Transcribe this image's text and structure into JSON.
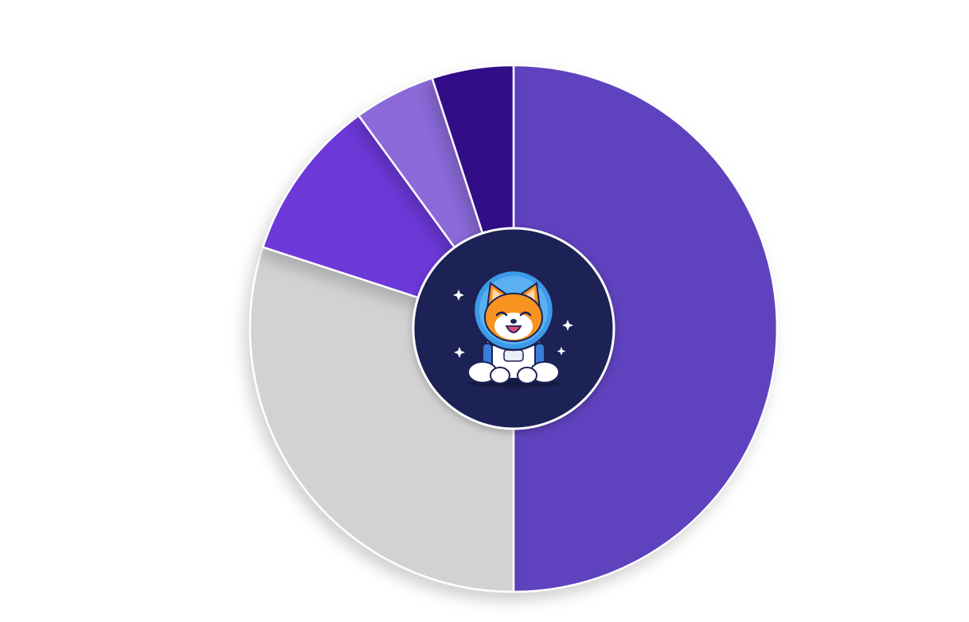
{
  "chart_data": {
    "type": "pie",
    "values": [
      50,
      30,
      10,
      5,
      5
    ],
    "colors": [
      "#5e42be",
      "#d2d2d2",
      "#6c38d8",
      "#8b69d9",
      "#300e88"
    ],
    "start": "top",
    "direction": "clockwise",
    "donut": true,
    "legend": "none"
  },
  "center_badge": {
    "background": "#1c2254",
    "icon": "shiba-astronaut-icon"
  }
}
